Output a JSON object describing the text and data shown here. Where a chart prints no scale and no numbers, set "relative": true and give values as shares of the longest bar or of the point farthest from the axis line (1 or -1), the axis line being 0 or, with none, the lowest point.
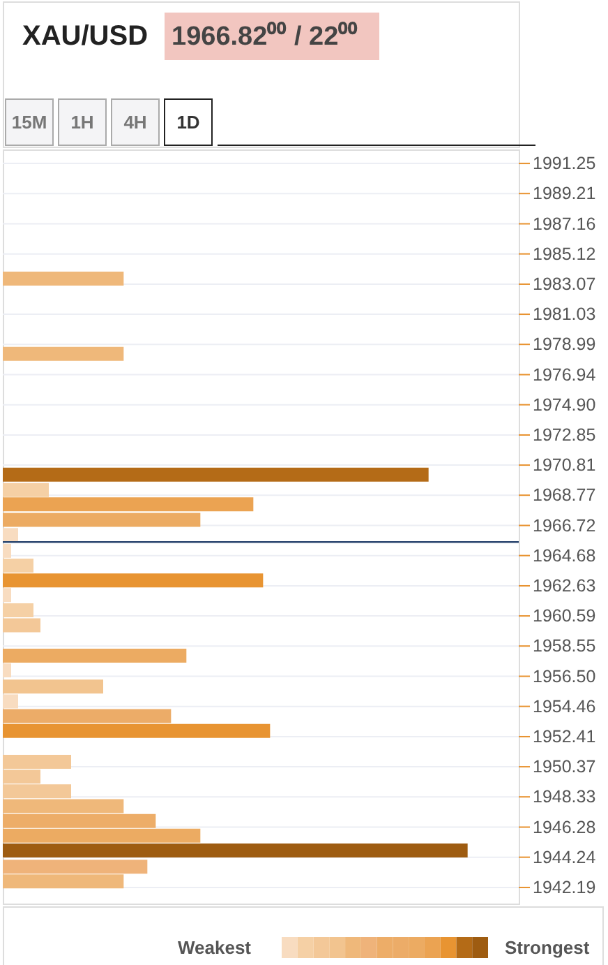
{
  "chart_data": {
    "type": "bar",
    "orientation": "horizontal",
    "relative": true,
    "title": "XAU/USD",
    "subtitle": "1966.82⁰⁰ / 22⁰⁰",
    "annotations": [
      "15M",
      "1H",
      "4H",
      "1D",
      "Weakest",
      "Strongest"
    ],
    "x": [
      1983.45,
      1978.35,
      1970.16,
      1969.12,
      1968.15,
      1967.1,
      1966.07,
      1965.0,
      1964.0,
      1963.0,
      1962.0,
      1960.97,
      1959.96,
      1957.9,
      1956.9,
      1955.8,
      1954.8,
      1953.8,
      1952.8,
      1950.7,
      1949.7,
      1948.7,
      1947.7,
      1946.7,
      1945.7,
      1944.7,
      1943.6,
      1942.6
    ],
    "values": [
      0.26,
      0.26,
      0.916,
      0.099,
      0.539,
      0.425,
      0.033,
      0.018,
      0.066,
      0.56,
      0.018,
      0.066,
      0.081,
      0.395,
      0.018,
      0.216,
      0.033,
      0.362,
      0.575,
      0.147,
      0.081,
      0.147,
      0.26,
      0.329,
      0.425,
      1,
      0.311,
      0.26
    ],
    "colors": [
      "#efb87a",
      "#efb87a",
      "#b46b17",
      "#f5d0a5",
      "#eba352",
      "#ecab62",
      "#f8dcc0",
      "#f8dcc0",
      "#f5d0a5",
      "#e89432",
      "#f8dcc0",
      "#f5d0a5",
      "#f3c898",
      "#ecab62",
      "#f8dcc0",
      "#f2c48f",
      "#f8dcc0",
      "#ecac68",
      "#e89432",
      "#f3c898",
      "#f3c898",
      "#f3c898",
      "#efb87a",
      "#edad68",
      "#ecab62",
      "#9e5c11",
      "#efb37a",
      "#efb87a"
    ],
    "ylim": [
      1941.1,
      1992.2
    ],
    "yticks": [
      1991.25,
      1989.21,
      1987.16,
      1985.12,
      1983.07,
      1981.03,
      1978.99,
      1976.94,
      {
        "value": 1974.9,
        "label": "1974.90"
      },
      1972.85,
      1970.81,
      1968.77,
      1966.72,
      1964.68,
      1962.63,
      1960.59,
      1958.55,
      {
        "value": 1956.5,
        "label": "1956.50"
      },
      1954.46,
      1952.41,
      1950.37,
      1948.33,
      1946.28,
      1944.24,
      1942.19
    ],
    "grid": true,
    "ref_lines": [
      {
        "axis": "y",
        "value": 1965.6,
        "color": "#2c4770"
      }
    ]
  }
}
